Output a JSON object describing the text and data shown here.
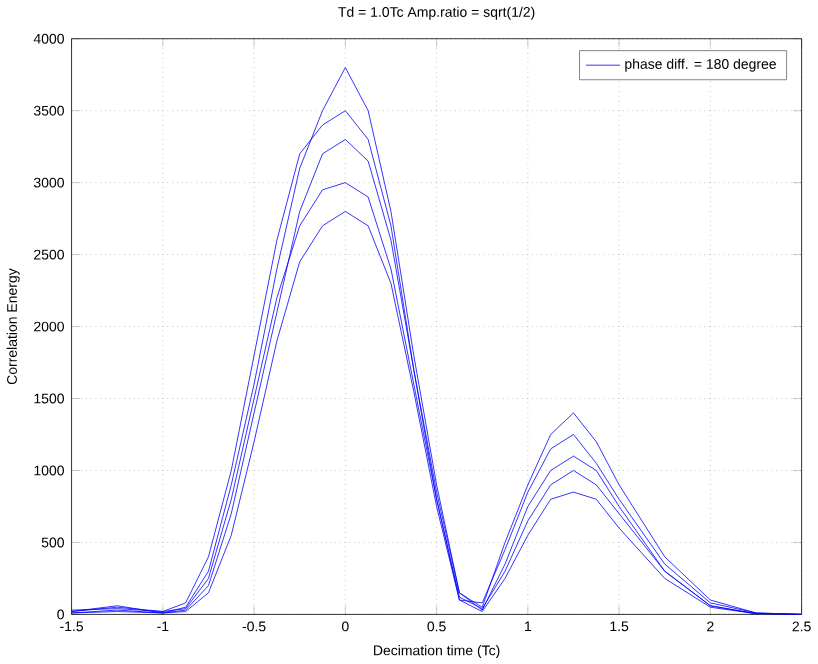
{
  "chart_data": {
    "type": "line",
    "title": "Td = 1.0Tc   Amp.ratio = sqrt(1/2)",
    "xlabel": "Decimation time (Tc)",
    "ylabel": "Correlation Energy",
    "x": [
      -1.5,
      -1.25,
      -1,
      -0.875,
      -0.75,
      -0.625,
      -0.5,
      -0.375,
      -0.25,
      -0.125,
      0,
      0.125,
      0.25,
      0.375,
      0.5,
      0.625,
      0.75,
      0.875,
      1,
      1.125,
      1.25,
      1.375,
      1.5,
      1.75,
      2,
      2.25,
      2.5
    ],
    "series": [
      {
        "name": "phase diff. = 180 degree",
        "color": "#0000ff",
        "values": [
          20,
          60,
          10,
          50,
          300,
          900,
          1600,
          2400,
          3100,
          3500,
          3800,
          3500,
          2800,
          1800,
          900,
          150,
          50,
          500,
          900,
          1250,
          1400,
          1200,
          900,
          400,
          100,
          10,
          0
        ]
      },
      {
        "color": "#0000ff",
        "values": [
          30,
          40,
          20,
          80,
          400,
          1000,
          1800,
          2600,
          3200,
          3400,
          3500,
          3300,
          2700,
          1700,
          800,
          100,
          80,
          450,
          850,
          1150,
          1250,
          1050,
          800,
          350,
          80,
          10,
          0
        ]
      },
      {
        "color": "#0000ff",
        "values": [
          10,
          30,
          10,
          30,
          200,
          700,
          1400,
          2100,
          2800,
          3200,
          3300,
          3150,
          2600,
          1700,
          850,
          150,
          30,
          350,
          750,
          1000,
          1100,
          1000,
          750,
          300,
          60,
          5,
          0
        ]
      },
      {
        "color": "#0000ff",
        "values": [
          20,
          50,
          20,
          40,
          250,
          800,
          1500,
          2200,
          2700,
          2950,
          3000,
          2900,
          2400,
          1600,
          800,
          120,
          40,
          300,
          650,
          900,
          1000,
          900,
          700,
          300,
          60,
          5,
          0
        ]
      },
      {
        "color": "#0000ff",
        "values": [
          10,
          20,
          10,
          20,
          150,
          550,
          1200,
          1900,
          2450,
          2700,
          2800,
          2700,
          2300,
          1550,
          750,
          100,
          20,
          250,
          550,
          800,
          850,
          800,
          600,
          250,
          50,
          5,
          0
        ]
      }
    ],
    "xlim": [
      -1.5,
      2.5
    ],
    "ylim": [
      0,
      4000
    ],
    "xticks": [
      -1.5,
      -1,
      -0.5,
      0,
      0.5,
      1,
      1.5,
      2,
      2.5
    ],
    "yticks": [
      0,
      500,
      1000,
      1500,
      2000,
      2500,
      3000,
      3500,
      4000
    ],
    "grid": true,
    "legend": "top right",
    "marker": "none",
    "line_style": "solid"
  }
}
